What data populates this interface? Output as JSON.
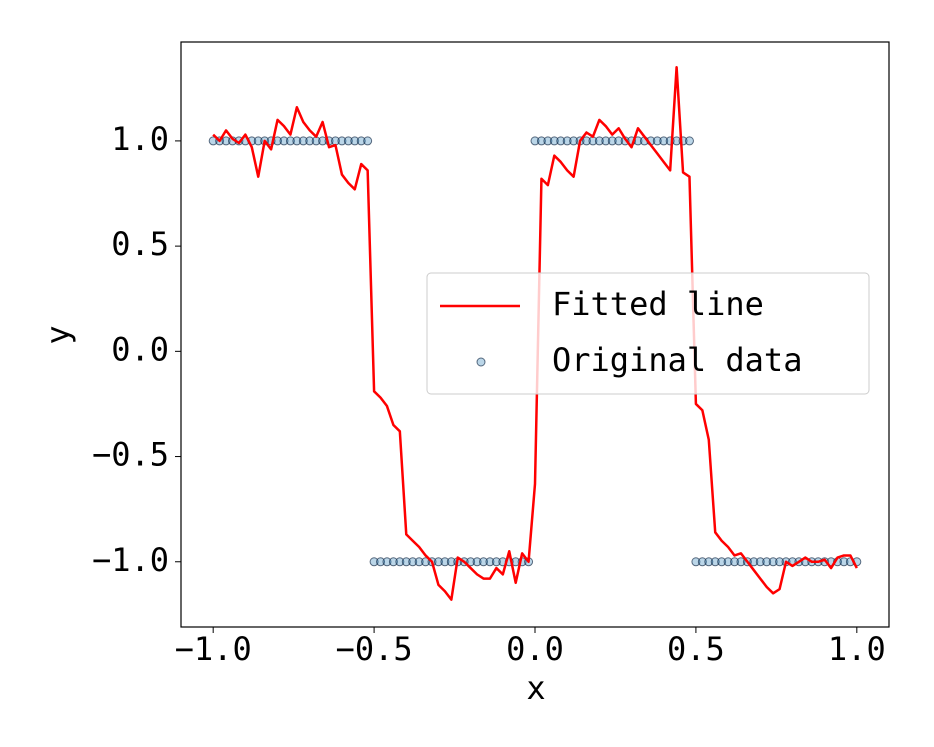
{
  "chart_data": {
    "type": "line",
    "xlabel": "x",
    "ylabel": "y",
    "x": [
      -1,
      -0.98,
      -0.96,
      -0.94,
      -0.92,
      -0.9,
      -0.88,
      -0.86,
      -0.84,
      -0.82,
      -0.8,
      -0.78,
      -0.76,
      -0.74,
      -0.72,
      -0.7,
      -0.68,
      -0.66,
      -0.64,
      -0.62,
      -0.6,
      -0.58,
      -0.56,
      -0.54,
      -0.52,
      -0.5,
      -0.48,
      -0.46,
      -0.44,
      -0.42,
      -0.4,
      -0.38,
      -0.36,
      -0.34,
      -0.32,
      -0.3,
      -0.28,
      -0.26,
      -0.24,
      -0.22,
      -0.2,
      -0.18,
      -0.16,
      -0.14,
      -0.12,
      -0.1,
      -0.08,
      -0.06,
      -0.04,
      -0.02,
      0,
      0.02,
      0.04,
      0.06,
      0.08,
      0.1,
      0.12,
      0.14,
      0.16,
      0.18,
      0.2,
      0.22,
      0.24,
      0.26,
      0.28,
      0.3,
      0.32,
      0.34,
      0.36,
      0.38,
      0.4,
      0.42,
      0.44,
      0.46,
      0.48,
      0.5,
      0.52,
      0.54,
      0.56,
      0.58,
      0.6,
      0.62,
      0.64,
      0.66,
      0.68,
      0.7,
      0.72,
      0.74,
      0.76,
      0.78,
      0.8,
      0.82,
      0.84,
      0.86,
      0.88,
      0.9,
      0.92,
      0.94,
      0.96,
      0.98,
      1
    ],
    "series": [
      {
        "name": "Fitted line",
        "type": "line",
        "color": "#ff0000",
        "values": [
          1.03,
          1.0,
          1.05,
          1.01,
          0.99,
          1.03,
          0.97,
          0.83,
          1.0,
          0.96,
          1.1,
          1.07,
          1.03,
          1.16,
          1.09,
          1.05,
          1.02,
          1.09,
          0.97,
          0.98,
          0.84,
          0.8,
          0.77,
          0.89,
          0.86,
          -0.19,
          -0.22,
          -0.26,
          -0.35,
          -0.38,
          -0.87,
          -0.9,
          -0.93,
          -0.97,
          -1.0,
          -1.11,
          -1.14,
          -1.18,
          -0.98,
          -1.0,
          -1.03,
          -1.06,
          -1.08,
          -1.08,
          -1.03,
          -1.06,
          -0.95,
          -1.1,
          -0.96,
          -1.0,
          -0.63,
          0.82,
          0.79,
          0.93,
          0.9,
          0.86,
          0.83,
          1.0,
          1.04,
          1.02,
          1.1,
          1.07,
          1.03,
          1.06,
          1.01,
          0.97,
          1.06,
          1.02,
          0.98,
          0.94,
          0.9,
          0.86,
          1.35,
          0.85,
          0.83,
          -0.25,
          -0.28,
          -0.42,
          -0.86,
          -0.9,
          -0.93,
          -0.97,
          -0.96,
          -1.0,
          -1.04,
          -1.08,
          -1.12,
          -1.15,
          -1.13,
          -1.0,
          -1.02,
          -1.0,
          -0.98,
          -1.0,
          -1.0,
          -0.99,
          -1.03,
          -0.98,
          -0.97,
          -0.97,
          -1.03
        ]
      },
      {
        "name": "Original data",
        "type": "scatter",
        "color": "#1f77b4",
        "values": [
          1,
          1,
          1,
          1,
          1,
          1,
          1,
          1,
          1,
          1,
          1,
          1,
          1,
          1,
          1,
          1,
          1,
          1,
          1,
          1,
          1,
          1,
          1,
          1,
          1,
          -1,
          -1,
          -1,
          -1,
          -1,
          -1,
          -1,
          -1,
          -1,
          -1,
          -1,
          -1,
          -1,
          -1,
          -1,
          -1,
          -1,
          -1,
          -1,
          -1,
          -1,
          -1,
          -1,
          -1,
          -1,
          1,
          1,
          1,
          1,
          1,
          1,
          1,
          1,
          1,
          1,
          1,
          1,
          1,
          1,
          1,
          1,
          1,
          1,
          1,
          1,
          1,
          1,
          1,
          1,
          1,
          -1,
          -1,
          -1,
          -1,
          -1,
          -1,
          -1,
          -1,
          -1,
          -1,
          -1,
          -1,
          -1,
          -1,
          -1,
          -1,
          -1,
          -1,
          -1,
          -1,
          -1,
          -1,
          -1,
          -1,
          -1,
          -1
        ]
      }
    ],
    "xlim": [
      -1.1,
      1.1
    ],
    "ylim": [
      -1.31,
      1.47
    ],
    "xticks": [
      {
        "value": -1,
        "label": "−1.0"
      },
      {
        "value": -0.5,
        "label": "−0.5"
      },
      {
        "value": 0,
        "label": "0.0"
      },
      {
        "value": 0.5,
        "label": "0.5"
      },
      {
        "value": 1,
        "label": "1.0"
      }
    ],
    "yticks": [
      {
        "value": -1,
        "label": "−1.0"
      },
      {
        "value": -0.5,
        "label": "−0.5"
      },
      {
        "value": 0,
        "label": "0.0"
      },
      {
        "value": 0.5,
        "label": "0.5"
      },
      {
        "value": 1,
        "label": "1.0"
      }
    ],
    "grid": false,
    "legend": "center right"
  }
}
